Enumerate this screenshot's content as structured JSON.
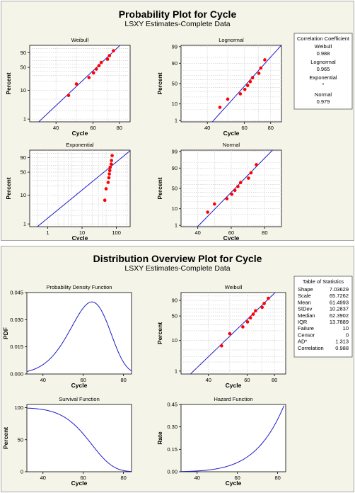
{
  "colors": {
    "panel_bg": "#f5f4e8",
    "plot_bg": "#ffffff",
    "fit_line": "#1c1cc8",
    "points": "#ff0000",
    "grid": "#c8c8c8"
  },
  "cycle_data": [
    45.9,
    50.0,
    57.4,
    60.3,
    62.2,
    64.0,
    65.6,
    70.3,
    71.8,
    75.0
  ],
  "top": {
    "title": "Probability Plot for Cycle",
    "subtitle": "LSXY Estimates-Complete Data",
    "corr_box": {
      "heading": "Correlation Coefficient",
      "rows": [
        {
          "name": "Weibull",
          "value": "0.988"
        },
        {
          "name": "Lognormal",
          "value": "0.965"
        },
        {
          "name": "Exponential",
          "value": "*"
        },
        {
          "name": "Normal",
          "value": "0.979"
        }
      ]
    },
    "plots": {
      "weibull": {
        "title": "Weibull",
        "xlabel": "Cycle",
        "ylabel": "Percent",
        "xticks": [
          "40",
          "60",
          "80"
        ],
        "yticks": [
          "1",
          "10",
          "50",
          "90"
        ]
      },
      "lognormal": {
        "title": "Lognormal",
        "xlabel": "Cycle",
        "ylabel": "Percent",
        "xticks": [
          "40",
          "60",
          "80"
        ],
        "yticks": [
          "1",
          "10",
          "50",
          "90",
          "99"
        ]
      },
      "exponential": {
        "title": "Exponential",
        "xlabel": "Cycle",
        "ylabel": "Percent",
        "xticks": [
          "1",
          "10",
          "100"
        ],
        "yticks": [
          "1",
          "10",
          "50",
          "90"
        ]
      },
      "normal": {
        "title": "Normal",
        "xlabel": "Cycle",
        "ylabel": "Percent",
        "xticks": [
          "40",
          "60",
          "80"
        ],
        "yticks": [
          "1",
          "10",
          "50",
          "90",
          "99"
        ]
      }
    }
  },
  "bottom": {
    "title": "Distribution Overview Plot for Cycle",
    "subtitle": "LSXY Estimates-Complete Data",
    "stats": {
      "heading": "Table of Statistics",
      "rows": [
        {
          "name": "Shape",
          "value": "7.03629"
        },
        {
          "name": "Scale",
          "value": "65.7262"
        },
        {
          "name": "Mean",
          "value": "61.4993"
        },
        {
          "name": "StDev",
          "value": "10.2837"
        },
        {
          "name": "Median",
          "value": "62.3902"
        },
        {
          "name": "IQR",
          "value": "13.7889"
        },
        {
          "name": "Failure",
          "value": "10"
        },
        {
          "name": "Censor",
          "value": "0"
        },
        {
          "name": "AD*",
          "value": "1.313"
        },
        {
          "name": "Correlation",
          "value": "0.988"
        }
      ]
    },
    "plots": {
      "pdf": {
        "title": "Probability Density Function",
        "xlabel": "Cycle",
        "ylabel": "PDF",
        "xticks": [
          "40",
          "60",
          "80"
        ],
        "yticks": [
          "0.000",
          "0.015",
          "0.030",
          "0.045"
        ]
      },
      "weibull2": {
        "title": "Weibull",
        "xlabel": "Cycle",
        "ylabel": "Percent",
        "xticks": [
          "40",
          "60",
          "80"
        ],
        "yticks": [
          "1",
          "10",
          "50",
          "90"
        ]
      },
      "survival": {
        "title": "Survival Function",
        "xlabel": "Cycle",
        "ylabel": "Percent",
        "xticks": [
          "40",
          "60",
          "80"
        ],
        "yticks": [
          "0",
          "50",
          "100"
        ]
      },
      "hazard": {
        "title": "Hazard Function",
        "xlabel": "Cycle",
        "ylabel": "Rate",
        "xticks": [
          "40",
          "60",
          "80"
        ],
        "yticks": [
          "0.00",
          "0.15",
          "0.30",
          "0.45"
        ]
      }
    }
  },
  "chart_data": [
    {
      "type": "scatter",
      "title": "Weibull",
      "xlabel": "Cycle",
      "ylabel": "Percent",
      "x": [
        45.9,
        50.0,
        57.4,
        60.3,
        62.2,
        64.0,
        65.6,
        70.3,
        71.8,
        75.0
      ],
      "y_percent": [
        6.7,
        16.3,
        25.9,
        35.6,
        45.2,
        54.8,
        64.4,
        74.0,
        83.7,
        93.3
      ],
      "xlim": [
        30,
        90
      ],
      "fit": {
        "shape": 7.03629,
        "scale": 65.7262
      }
    },
    {
      "type": "scatter",
      "title": "Lognormal",
      "xlabel": "Cycle",
      "ylabel": "Percent",
      "x": [
        45.9,
        50.0,
        57.4,
        60.3,
        62.2,
        64.0,
        65.6,
        70.3,
        71.8,
        75.0
      ],
      "y_percent": [
        6.7,
        16.3,
        25.9,
        35.6,
        45.2,
        54.8,
        64.4,
        74.0,
        83.7,
        93.3
      ],
      "xlim": [
        30,
        90
      ]
    },
    {
      "type": "scatter",
      "title": "Exponential",
      "xlabel": "Cycle",
      "ylabel": "Percent",
      "x": [
        45.9,
        50.0,
        57.4,
        60.3,
        62.2,
        64.0,
        65.6,
        70.3,
        71.8,
        75.0
      ],
      "y_percent": [
        6.7,
        16.3,
        25.9,
        35.6,
        45.2,
        54.8,
        64.4,
        74.0,
        83.7,
        93.3
      ],
      "xscale": "log",
      "xlim": [
        0.3,
        250
      ]
    },
    {
      "type": "scatter",
      "title": "Normal",
      "xlabel": "Cycle",
      "ylabel": "Percent",
      "x": [
        45.9,
        50.0,
        57.4,
        60.3,
        62.2,
        64.0,
        65.6,
        70.3,
        71.8,
        75.0
      ],
      "y_percent": [
        6.7,
        16.3,
        25.9,
        35.6,
        45.2,
        54.8,
        64.4,
        74.0,
        83.7,
        93.3
      ],
      "xlim": [
        30,
        90
      ]
    },
    {
      "type": "line",
      "title": "Probability Density Function",
      "xlabel": "Cycle",
      "ylabel": "PDF",
      "xlim": [
        33,
        82
      ],
      "ylim": [
        0,
        0.045
      ],
      "fit": {
        "shape": 7.03629,
        "scale": 65.7262
      }
    },
    {
      "type": "scatter",
      "title": "Weibull",
      "xlabel": "Cycle",
      "ylabel": "Percent",
      "x": [
        45.9,
        50.0,
        57.4,
        60.3,
        62.2,
        64.0,
        65.6,
        70.3,
        71.8,
        75.0
      ],
      "y_percent": [
        6.7,
        16.3,
        25.9,
        35.6,
        45.2,
        54.8,
        64.4,
        74.0,
        83.7,
        93.3
      ],
      "xlim": [
        30,
        90
      ]
    },
    {
      "type": "line",
      "title": "Survival Function",
      "xlabel": "Cycle",
      "ylabel": "Percent",
      "xlim": [
        33,
        82
      ],
      "ylim": [
        0,
        100
      ]
    },
    {
      "type": "line",
      "title": "Hazard Function",
      "xlabel": "Cycle",
      "ylabel": "Rate",
      "xlim": [
        33,
        82
      ],
      "ylim": [
        0,
        0.45
      ]
    }
  ]
}
